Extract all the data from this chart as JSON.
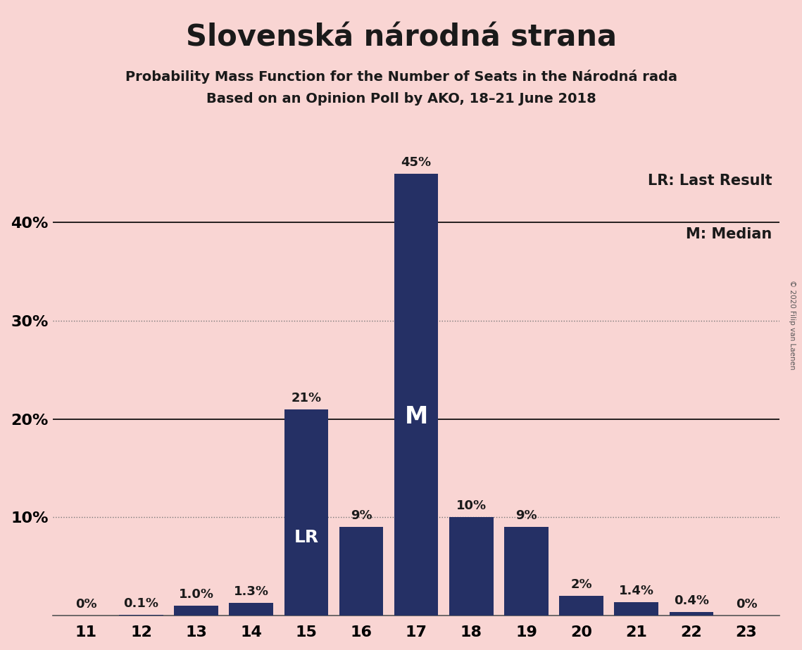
{
  "title": "Slovenská národná strana",
  "subtitle1": "Probability Mass Function for the Number of Seats in the Národná rada",
  "subtitle2": "Based on an Opinion Poll by AKO, 18–21 June 2018",
  "categories": [
    11,
    12,
    13,
    14,
    15,
    16,
    17,
    18,
    19,
    20,
    21,
    22,
    23
  ],
  "values": [
    0.0,
    0.1,
    1.0,
    1.3,
    21.0,
    9.0,
    45.0,
    10.0,
    9.0,
    2.0,
    1.4,
    0.4,
    0.0
  ],
  "labels": [
    "0%",
    "0.1%",
    "1.0%",
    "1.3%",
    "21%",
    "9%",
    "45%",
    "10%",
    "9%",
    "2%",
    "1.4%",
    "0.4%",
    "0%"
  ],
  "bar_color": "#253065",
  "background_color": "#f9d5d3",
  "text_color_dark": "#1a1a1a",
  "text_color_light": "#ffffff",
  "last_result_seat": 15,
  "median_seat": 17,
  "ylim": [
    0,
    50
  ],
  "yticks": [
    0,
    10,
    20,
    30,
    40,
    50
  ],
  "ytick_labels": [
    "",
    "10%",
    "20%",
    "30%",
    "40%",
    ""
  ],
  "solid_yticks": [
    20,
    40
  ],
  "dotted_yticks": [
    10,
    30
  ],
  "legend_lr": "LR: Last Result",
  "legend_m": "M: Median",
  "copyright": "© 2020 Filip van Laenen",
  "title_fontsize": 30,
  "subtitle_fontsize": 14,
  "axis_label_fontsize": 16,
  "bar_label_fontsize": 13,
  "inside_label_fontsize": 18,
  "legend_fontsize": 15
}
